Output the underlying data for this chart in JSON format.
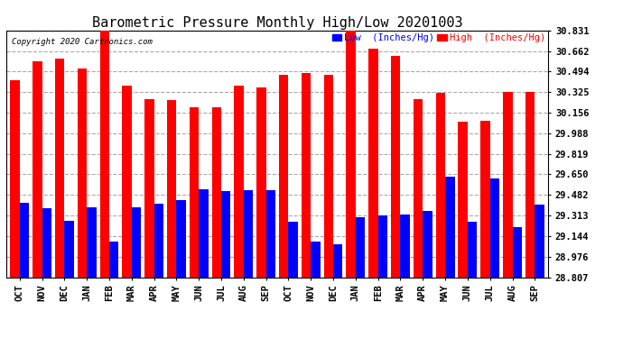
{
  "title": "Barometric Pressure Monthly High/Low 20201003",
  "copyright": "Copyright 2020 Cartronics.com",
  "legend_low": "Low  (Inches/Hg)",
  "legend_high": "High  (Inches/Hg)",
  "months": [
    "OCT",
    "NOV",
    "DEC",
    "JAN",
    "FEB",
    "MAR",
    "APR",
    "MAY",
    "JUN",
    "JUL",
    "AUG",
    "SEP",
    "OCT",
    "NOV",
    "DEC",
    "JAN",
    "FEB",
    "MAR",
    "APR",
    "MAY",
    "JUN",
    "JUL",
    "AUG",
    "SEP"
  ],
  "high_values": [
    30.42,
    30.58,
    30.6,
    30.52,
    30.83,
    30.38,
    30.27,
    30.26,
    30.2,
    30.2,
    30.38,
    30.36,
    30.47,
    30.48,
    30.47,
    30.83,
    30.68,
    30.62,
    30.27,
    30.32,
    30.08,
    30.09,
    30.33,
    30.33
  ],
  "low_values": [
    29.42,
    29.37,
    29.27,
    29.38,
    29.1,
    29.38,
    29.41,
    29.44,
    29.53,
    29.51,
    29.52,
    29.52,
    29.26,
    29.1,
    29.08,
    29.3,
    29.31,
    29.32,
    29.35,
    29.63,
    29.26,
    29.62,
    29.22,
    29.4
  ],
  "ymin": 28.807,
  "ymax": 30.831,
  "yticks": [
    28.807,
    28.976,
    29.144,
    29.313,
    29.482,
    29.65,
    29.819,
    29.988,
    30.156,
    30.325,
    30.494,
    30.662,
    30.831
  ],
  "high_color": "#ff0000",
  "low_color": "#0000ff",
  "bg_color": "#ffffff",
  "grid_color": "#aaaaaa",
  "title_fontsize": 11,
  "bar_width": 0.42
}
